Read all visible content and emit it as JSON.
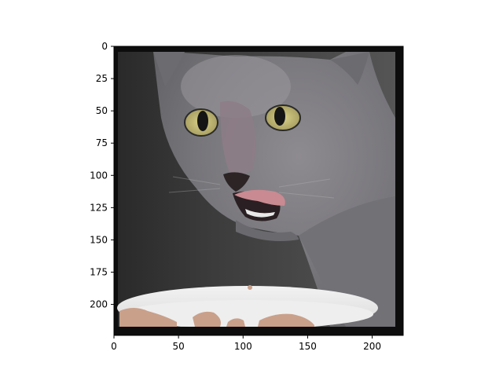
{
  "image": {
    "subject": "cat-eating-from-bowl",
    "axes": {
      "x_ticks": [
        "0",
        "50",
        "100",
        "150",
        "200"
      ],
      "y_ticks": [
        "0",
        "25",
        "50",
        "75",
        "100",
        "125",
        "150",
        "175",
        "200"
      ]
    }
  }
}
